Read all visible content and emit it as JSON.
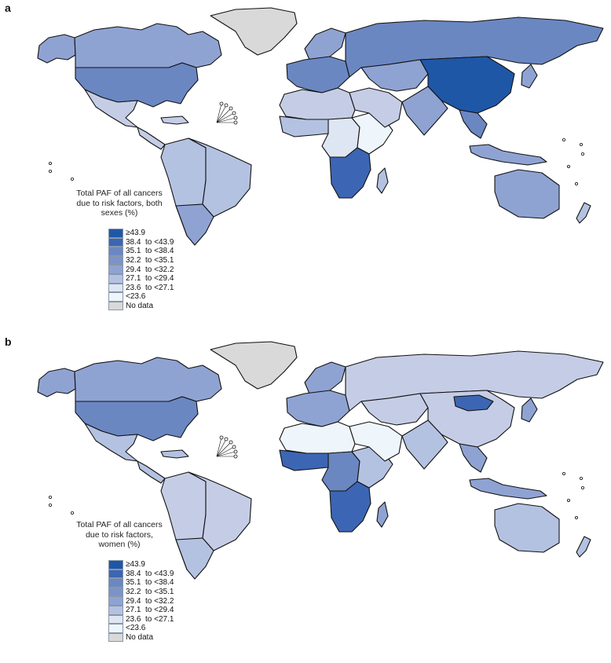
{
  "panels": [
    {
      "letter": "a",
      "legend_title_lines": [
        "Total PAF of all cancers",
        "due to risk factors, both",
        "sexes (%)"
      ],
      "regions": {
        "alaska": "#8fa3d3",
        "canada": "#8fa3d3",
        "usa": "#6b87c2",
        "greenland": "#d9d9d9",
        "mexico": "#c5cde6",
        "central_america": "#c5cde6",
        "caribbean": "#c5cde6",
        "south_america": "#b4c2e2",
        "brazil": "#b4c2e2",
        "argentina": "#8fa3d3",
        "europe": "#6b87c2",
        "scandinavia": "#8fa3d3",
        "russia": "#6b87c2",
        "north_africa": "#c5cde6",
        "west_africa": "#b4c2e2",
        "central_africa": "#dfe6f3",
        "east_africa": "#eef6fb",
        "southern_africa": "#3c66b3",
        "madagascar": "#b4c2e2",
        "middle_east": "#c5cde6",
        "central_asia": "#8fa3d3",
        "south_asia": "#8fa3d3",
        "china": "#1f57a7",
        "southeast_asia": "#6b87c2",
        "japan": "#8fa3d3",
        "indonesia": "#8fa3d3",
        "australia": "#8fa3d3",
        "new_zealand": "#b4c2e2"
      }
    },
    {
      "letter": "b",
      "legend_title_lines": [
        "Total PAF of all cancers",
        "due to risk factors,",
        "women (%)"
      ],
      "regions": {
        "alaska": "#8fa3d3",
        "canada": "#8fa3d3",
        "usa": "#6b87c2",
        "greenland": "#d9d9d9",
        "mexico": "#b4c2e2",
        "central_america": "#b4c2e2",
        "caribbean": "#b4c2e2",
        "south_america": "#c5cde6",
        "brazil": "#c5cde6",
        "argentina": "#b4c2e2",
        "europe": "#8fa3d3",
        "scandinavia": "#8fa3d3",
        "russia": "#c5cde6",
        "north_africa": "#eef6fb",
        "west_africa": "#3c66b3",
        "central_africa": "#6b87c2",
        "east_africa": "#b4c2e2",
        "southern_africa": "#3c66b3",
        "madagascar": "#8fa3d3",
        "middle_east": "#eef6fb",
        "central_asia": "#c5cde6",
        "south_asia": "#b4c2e2",
        "china": "#c5cde6",
        "southeast_asia": "#8fa3d3",
        "japan": "#8fa3d3",
        "indonesia": "#8fa3d3",
        "australia": "#b4c2e2",
        "new_zealand": "#b4c2e2",
        "mongolia": "#3c66b3"
      }
    }
  ],
  "legend": [
    {
      "label": "≥43.9",
      "color": "#1f57a7"
    },
    {
      "label": "38.4  to <43.9",
      "color": "#3c66b3"
    },
    {
      "label": "35.1  to <38.4",
      "color": "#6b87c2"
    },
    {
      "label": "32.2  to <35.1",
      "color": "#7c93c9"
    },
    {
      "label": "29.4  to <32.2",
      "color": "#8fa3d3"
    },
    {
      "label": "27.1  to <29.4",
      "color": "#b4c2e2"
    },
    {
      "label": "23.6  to <27.1",
      "color": "#dfe6f3"
    },
    {
      "label": "<23.6",
      "color": "#eef6fb"
    },
    {
      "label": "No data",
      "color": "#d9d9d9"
    }
  ]
}
